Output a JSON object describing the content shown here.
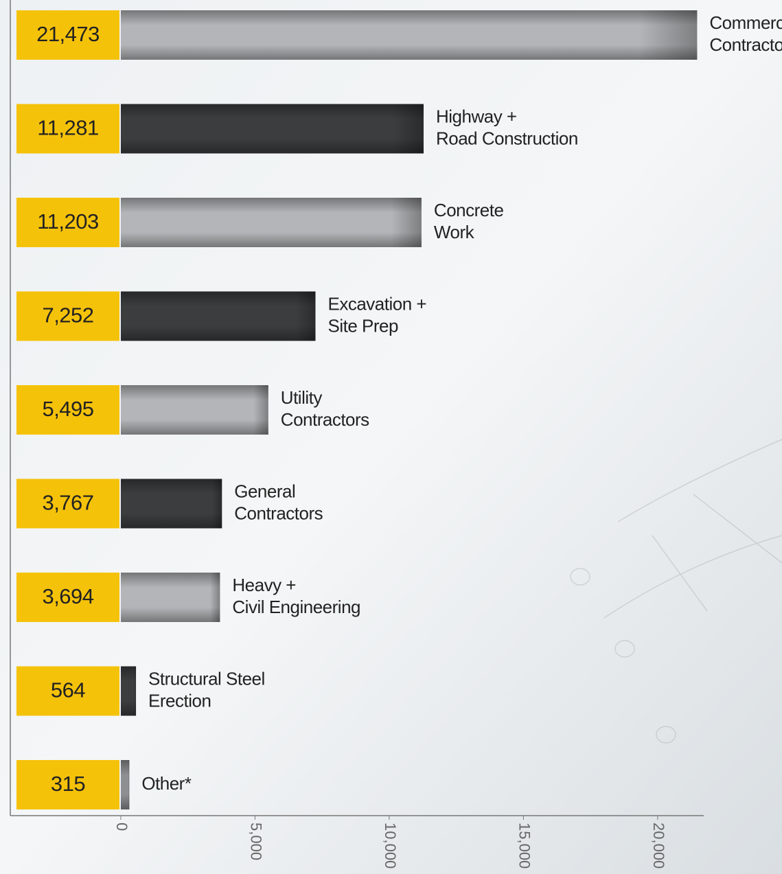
{
  "chart_data": {
    "type": "bar",
    "orientation": "horizontal",
    "categories": [
      [
        "Commercial",
        "Contractor"
      ],
      [
        "Highway +",
        "Road Construction"
      ],
      [
        "Concrete",
        "Work"
      ],
      [
        "Excavation +",
        "Site Prep"
      ],
      [
        "Utility",
        "Contractors"
      ],
      [
        "General",
        "Contractors"
      ],
      [
        "Heavy +",
        "Civil Engineering"
      ],
      [
        "Structural Steel",
        "Erection"
      ],
      [
        "Other*"
      ]
    ],
    "values": [
      21473,
      11281,
      11203,
      7252,
      5495,
      3767,
      3694,
      564,
      315
    ],
    "value_labels": [
      "21,473",
      "11,281",
      "11,203",
      "7,252",
      "5,495",
      "3,767",
      "3,694",
      "564",
      "315"
    ],
    "colors": [
      "#b4b5b8",
      "#3c3d3f",
      "#b4b5b8",
      "#3c3d3f",
      "#b4b5b8",
      "#3c3d3f",
      "#b4b5b8",
      "#3c3d3f",
      "#8e8f92"
    ],
    "label_box_color": "#f5c20a",
    "xlim": [
      0,
      22000
    ],
    "xticks": [
      0,
      {
        "value": 5000,
        "label": "5,000"
      },
      {
        "value": 10000,
        "label": "10,000"
      },
      {
        "value": 15000,
        "label": "15,000"
      },
      {
        "value": 20000,
        "label": "20,000"
      }
    ]
  }
}
